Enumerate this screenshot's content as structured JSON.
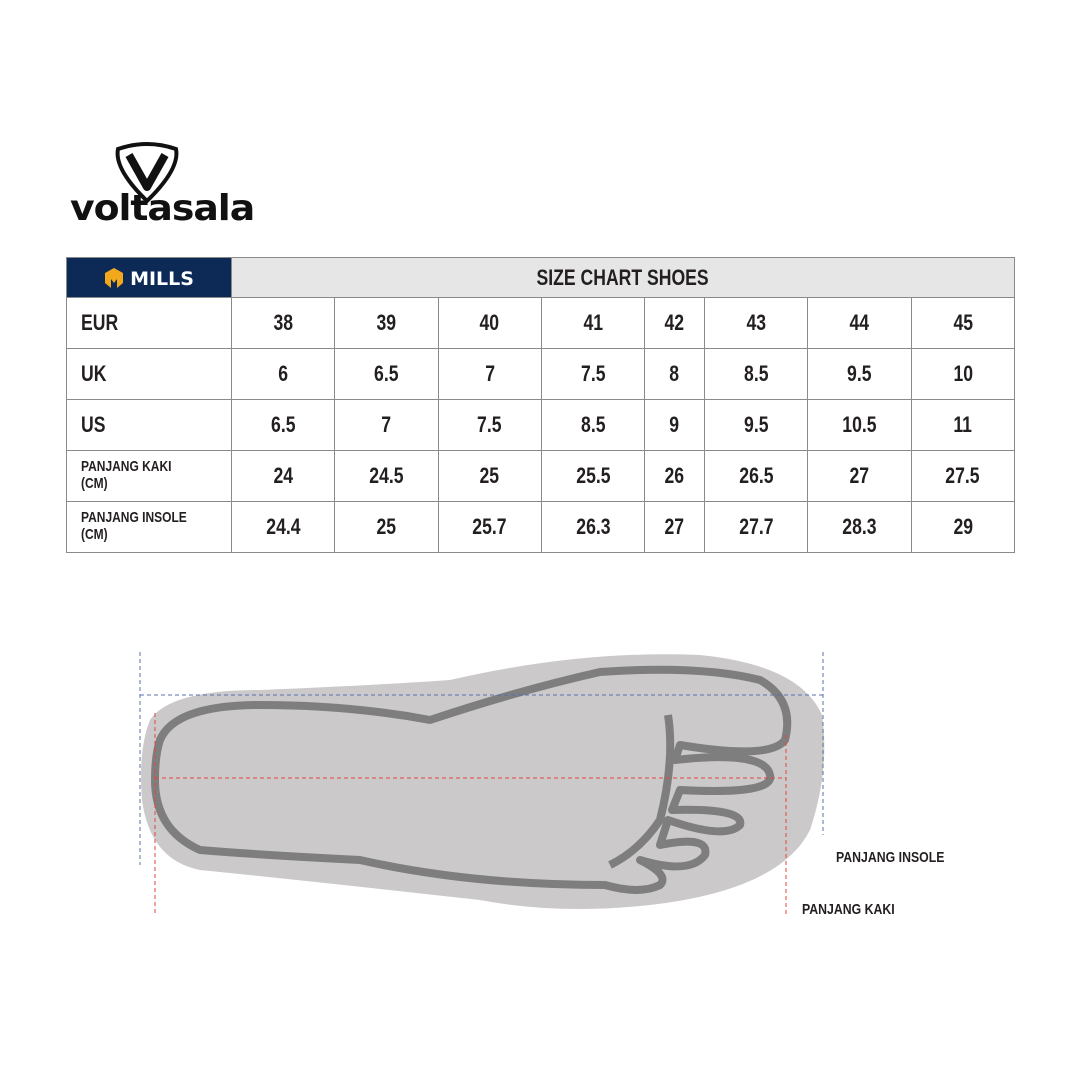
{
  "brand": {
    "name": "voltasala",
    "sub_brand": "MILLS"
  },
  "chart_data": {
    "type": "table",
    "title": "SIZE CHART SHOES",
    "rows": [
      {
        "label": "EUR",
        "values": [
          "38",
          "39",
          "40",
          "41",
          "42",
          "43",
          "44",
          "45"
        ]
      },
      {
        "label": "UK",
        "values": [
          "6",
          "6.5",
          "7",
          "7.5",
          "8",
          "8.5",
          "9.5",
          "10"
        ]
      },
      {
        "label": "US",
        "values": [
          "6.5",
          "7",
          "7.5",
          "8.5",
          "9",
          "9.5",
          "10.5",
          "11"
        ]
      },
      {
        "label": "PANJANG KAKI (CM)",
        "values": [
          "24",
          "24.5",
          "25",
          "25.5",
          "26",
          "26.5",
          "27",
          "27.5"
        ]
      },
      {
        "label": "PANJANG INSOLE (CM)",
        "values": [
          "24.4",
          "25",
          "25.7",
          "26.3",
          "27",
          "27.7",
          "28.3",
          "29"
        ]
      }
    ]
  },
  "diagram": {
    "insole_label": "PANJANG INSOLE",
    "foot_label": "PANJANG KAKI",
    "insole_line_color": "#5a6fb3",
    "foot_line_color": "#e0463f"
  },
  "colors": {
    "brand_bg": "#0d2a56",
    "header_bg": "#e6e6e6",
    "mills_icon": "#f2a81d"
  }
}
